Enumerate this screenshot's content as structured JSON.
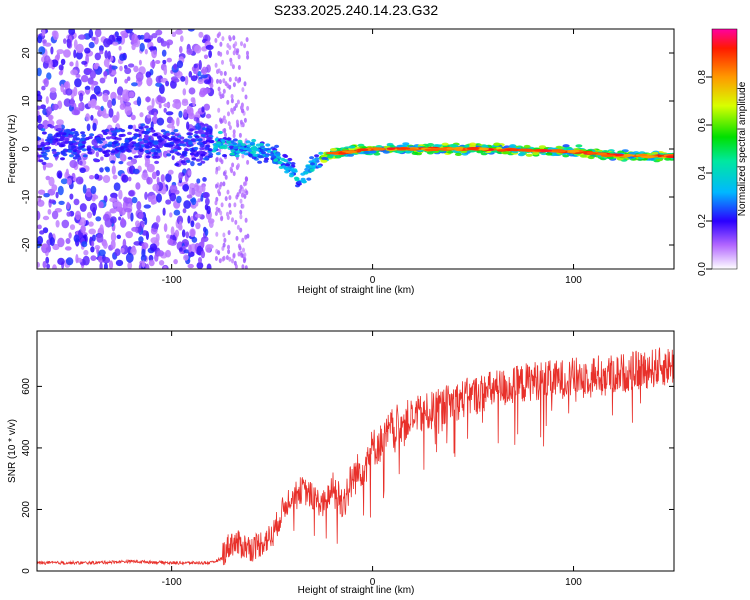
{
  "title": "S233.2025.240.14.23.G32",
  "chart_data": [
    {
      "type": "heatmap",
      "title": "S233.2025.240.14.23.G32",
      "xlabel": "Height of straight line (km)",
      "ylabel": "Frequency (Hz)",
      "xlim": [
        -167,
        150
      ],
      "ylim": [
        -25,
        25
      ],
      "xticks": [
        -100,
        0,
        100
      ],
      "yticks": [
        -20,
        -10,
        0,
        10,
        20
      ],
      "colorbar": {
        "label": "Normalized spectral amplitude",
        "range": [
          0,
          1
        ],
        "ticks": [
          0.0,
          0.2,
          0.4,
          0.6,
          0.8
        ]
      },
      "ridge": {
        "description_points_x": [
          -80,
          -60,
          -50,
          -40,
          -36,
          -30,
          -20,
          0,
          50,
          100,
          125,
          150
        ],
        "description_points_y": [
          1,
          0,
          -1,
          -4,
          -7,
          -3,
          -1,
          0,
          0,
          -0.5,
          -1.5,
          -1.5
        ]
      }
    },
    {
      "type": "line",
      "title": "",
      "xlabel": "Height of straight line (km)",
      "ylabel": "SNR (10 * v/v)",
      "xlim": [
        -167,
        150
      ],
      "ylim": [
        0,
        780
      ],
      "xticks": [
        -100,
        0,
        100
      ],
      "yticks": [
        0,
        200,
        400,
        600
      ],
      "series": [
        {
          "name": "SNR",
          "color": "#e8302a",
          "x": [
            -167,
            -140,
            -120,
            -100,
            -80,
            -75,
            -70,
            -60,
            -50,
            -45,
            -40,
            -35,
            -30,
            -25,
            -20,
            -15,
            -10,
            -5,
            0,
            5,
            10,
            20,
            30,
            40,
            50,
            60,
            70,
            80,
            90,
            100,
            110,
            120,
            130,
            140,
            150
          ],
          "y": [
            25,
            25,
            30,
            25,
            25,
            40,
            80,
            60,
            100,
            180,
            240,
            250,
            230,
            200,
            250,
            200,
            280,
            320,
            380,
            400,
            450,
            480,
            500,
            530,
            550,
            570,
            580,
            600,
            600,
            610,
            620,
            620,
            630,
            640,
            650
          ]
        }
      ]
    }
  ]
}
